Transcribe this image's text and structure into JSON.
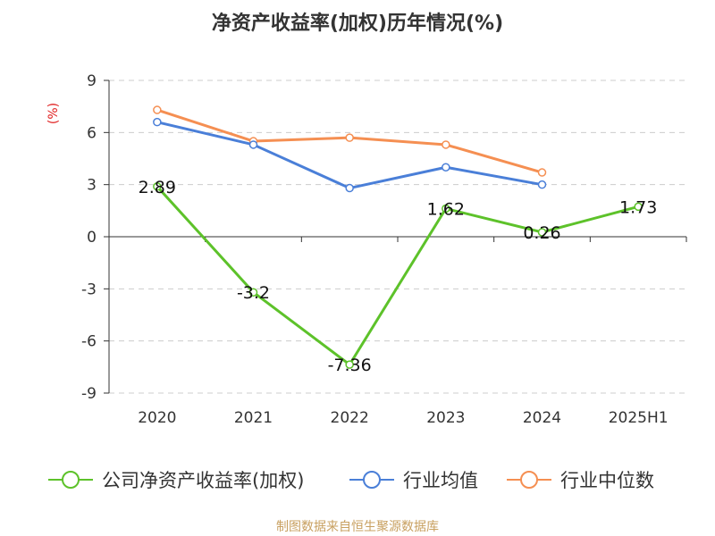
{
  "chart_data": {
    "type": "line",
    "title": "净资产收益率(加权)历年情况(%)",
    "ylabel": "(%)",
    "categories": [
      "2020",
      "2021",
      "2022",
      "2023",
      "2024",
      "2025H1"
    ],
    "yticks": [
      9,
      6,
      3,
      0,
      -3,
      -6,
      -9
    ],
    "ylim": [
      -9,
      9
    ],
    "grid": true,
    "legend_position": "bottom",
    "series": [
      {
        "name": "公司净资产收益率(加权)",
        "color": "#5dc22a",
        "values": [
          2.89,
          -3.2,
          -7.36,
          1.62,
          0.26,
          1.73
        ],
        "labels": [
          "2.89",
          "-3.2",
          "-7.36",
          "1.62",
          "0.26",
          "1.73"
        ]
      },
      {
        "name": "行业均值",
        "color": "#4a7fd8",
        "values": [
          6.6,
          5.3,
          2.8,
          4.0,
          3.0,
          null
        ]
      },
      {
        "name": "行业中位数",
        "color": "#f58f52",
        "values": [
          7.3,
          5.5,
          5.7,
          5.3,
          3.7,
          null
        ]
      }
    ],
    "source": "制图数据来自恒生聚源数据库"
  }
}
